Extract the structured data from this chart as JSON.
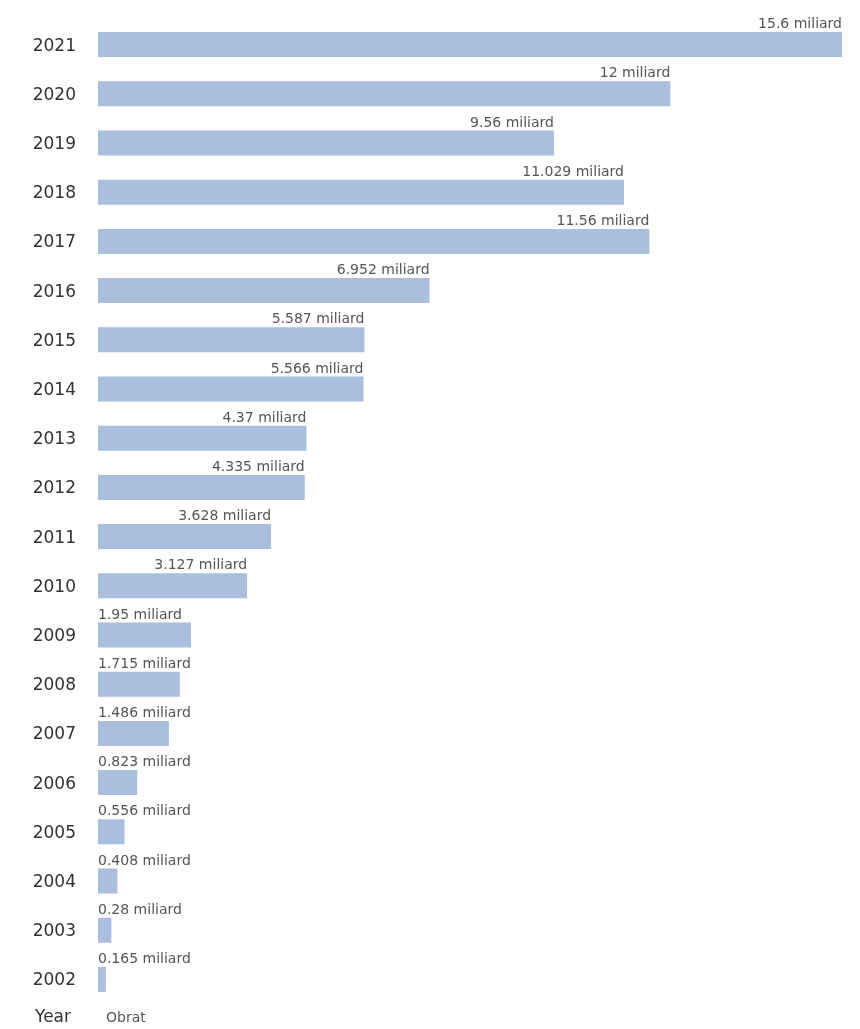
{
  "chart_data": {
    "type": "bar",
    "orientation": "horizontal",
    "xlabel": "Obrat",
    "ylabel": "Year",
    "categories": [
      "2021",
      "2020",
      "2019",
      "2018",
      "2017",
      "2016",
      "2015",
      "2014",
      "2013",
      "2012",
      "2011",
      "2010",
      "2009",
      "2008",
      "2007",
      "2006",
      "2005",
      "2004",
      "2003",
      "2002"
    ],
    "values": [
      15.6,
      12,
      9.56,
      11.029,
      11.56,
      6.952,
      5.587,
      5.566,
      4.37,
      4.335,
      3.628,
      3.127,
      1.95,
      1.715,
      1.486,
      0.823,
      0.556,
      0.408,
      0.28,
      0.165
    ],
    "value_labels": [
      "15.6 miliard",
      "12 miliard",
      "9.56 miliard",
      "11.029 miliard",
      "11.56 miliard",
      "6.952 miliard",
      "5.587 miliard",
      "5.566 miliard",
      "4.37 miliard",
      "4.335 miliard",
      "3.628 miliard",
      "3.127 miliard",
      "1.95 miliard",
      "1.715 miliard",
      "1.486 miliard",
      "0.823 miliard",
      "0.556 miliard",
      "0.408 miliard",
      "0.28 miliard",
      "0.165 miliard"
    ],
    "color": "#a9bfdd"
  }
}
